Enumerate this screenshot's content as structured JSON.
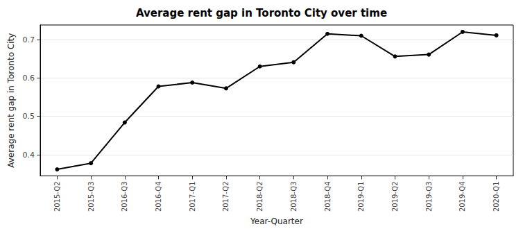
{
  "chart_data": {
    "type": "line",
    "title": "Average rent gap in Toronto City over time",
    "xlabel": "Year-Quarter",
    "ylabel": "Average rent gap in Toronto City",
    "categories": [
      "2015-Q2",
      "2015-Q3",
      "2016-Q3",
      "2016-Q4",
      "2017-Q1",
      "2017-Q2",
      "2018-Q2",
      "2018-Q3",
      "2018-Q4",
      "2019-Q1",
      "2019-Q2",
      "2019-Q3",
      "2019-Q4",
      "2020-Q1"
    ],
    "values": [
      0.362,
      0.378,
      0.484,
      0.578,
      0.588,
      0.573,
      0.63,
      0.641,
      0.715,
      0.71,
      0.656,
      0.661,
      0.72,
      0.711
    ],
    "color": "#000000",
    "marker": "circle",
    "ylim": [
      0.345,
      0.738
    ],
    "yticks": [
      0.4,
      0.5,
      0.6,
      0.7
    ],
    "grid": true
  }
}
